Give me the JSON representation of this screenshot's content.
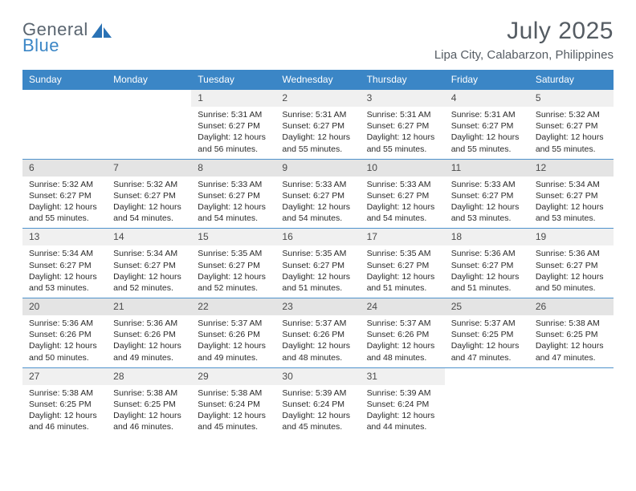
{
  "brand": {
    "line1": "General",
    "line2": "Blue",
    "icon_color": "#2a72b5"
  },
  "title": "July 2025",
  "location": "Lipa City, Calabarzon, Philippines",
  "colors": {
    "header_bg": "#3b86c6",
    "header_text": "#ffffff",
    "rule": "#3b86c6",
    "row_alt1": "#f0f0f0",
    "row_alt2": "#e4e4e4",
    "text": "#2a2a2a",
    "title_text": "#555c63"
  },
  "day_names": [
    "Sunday",
    "Monday",
    "Tuesday",
    "Wednesday",
    "Thursday",
    "Friday",
    "Saturday"
  ],
  "weeks": [
    {
      "shade": false,
      "days": [
        {
          "n": "",
          "body": ""
        },
        {
          "n": "",
          "body": ""
        },
        {
          "n": "1",
          "body": "Sunrise: 5:31 AM\nSunset: 6:27 PM\nDaylight: 12 hours and 56 minutes."
        },
        {
          "n": "2",
          "body": "Sunrise: 5:31 AM\nSunset: 6:27 PM\nDaylight: 12 hours and 55 minutes."
        },
        {
          "n": "3",
          "body": "Sunrise: 5:31 AM\nSunset: 6:27 PM\nDaylight: 12 hours and 55 minutes."
        },
        {
          "n": "4",
          "body": "Sunrise: 5:31 AM\nSunset: 6:27 PM\nDaylight: 12 hours and 55 minutes."
        },
        {
          "n": "5",
          "body": "Sunrise: 5:32 AM\nSunset: 6:27 PM\nDaylight: 12 hours and 55 minutes."
        }
      ]
    },
    {
      "shade": true,
      "days": [
        {
          "n": "6",
          "body": "Sunrise: 5:32 AM\nSunset: 6:27 PM\nDaylight: 12 hours and 55 minutes."
        },
        {
          "n": "7",
          "body": "Sunrise: 5:32 AM\nSunset: 6:27 PM\nDaylight: 12 hours and 54 minutes."
        },
        {
          "n": "8",
          "body": "Sunrise: 5:33 AM\nSunset: 6:27 PM\nDaylight: 12 hours and 54 minutes."
        },
        {
          "n": "9",
          "body": "Sunrise: 5:33 AM\nSunset: 6:27 PM\nDaylight: 12 hours and 54 minutes."
        },
        {
          "n": "10",
          "body": "Sunrise: 5:33 AM\nSunset: 6:27 PM\nDaylight: 12 hours and 54 minutes."
        },
        {
          "n": "11",
          "body": "Sunrise: 5:33 AM\nSunset: 6:27 PM\nDaylight: 12 hours and 53 minutes."
        },
        {
          "n": "12",
          "body": "Sunrise: 5:34 AM\nSunset: 6:27 PM\nDaylight: 12 hours and 53 minutes."
        }
      ]
    },
    {
      "shade": false,
      "days": [
        {
          "n": "13",
          "body": "Sunrise: 5:34 AM\nSunset: 6:27 PM\nDaylight: 12 hours and 53 minutes."
        },
        {
          "n": "14",
          "body": "Sunrise: 5:34 AM\nSunset: 6:27 PM\nDaylight: 12 hours and 52 minutes."
        },
        {
          "n": "15",
          "body": "Sunrise: 5:35 AM\nSunset: 6:27 PM\nDaylight: 12 hours and 52 minutes."
        },
        {
          "n": "16",
          "body": "Sunrise: 5:35 AM\nSunset: 6:27 PM\nDaylight: 12 hours and 51 minutes."
        },
        {
          "n": "17",
          "body": "Sunrise: 5:35 AM\nSunset: 6:27 PM\nDaylight: 12 hours and 51 minutes."
        },
        {
          "n": "18",
          "body": "Sunrise: 5:36 AM\nSunset: 6:27 PM\nDaylight: 12 hours and 51 minutes."
        },
        {
          "n": "19",
          "body": "Sunrise: 5:36 AM\nSunset: 6:27 PM\nDaylight: 12 hours and 50 minutes."
        }
      ]
    },
    {
      "shade": true,
      "days": [
        {
          "n": "20",
          "body": "Sunrise: 5:36 AM\nSunset: 6:26 PM\nDaylight: 12 hours and 50 minutes."
        },
        {
          "n": "21",
          "body": "Sunrise: 5:36 AM\nSunset: 6:26 PM\nDaylight: 12 hours and 49 minutes."
        },
        {
          "n": "22",
          "body": "Sunrise: 5:37 AM\nSunset: 6:26 PM\nDaylight: 12 hours and 49 minutes."
        },
        {
          "n": "23",
          "body": "Sunrise: 5:37 AM\nSunset: 6:26 PM\nDaylight: 12 hours and 48 minutes."
        },
        {
          "n": "24",
          "body": "Sunrise: 5:37 AM\nSunset: 6:26 PM\nDaylight: 12 hours and 48 minutes."
        },
        {
          "n": "25",
          "body": "Sunrise: 5:37 AM\nSunset: 6:25 PM\nDaylight: 12 hours and 47 minutes."
        },
        {
          "n": "26",
          "body": "Sunrise: 5:38 AM\nSunset: 6:25 PM\nDaylight: 12 hours and 47 minutes."
        }
      ]
    },
    {
      "shade": false,
      "days": [
        {
          "n": "27",
          "body": "Sunrise: 5:38 AM\nSunset: 6:25 PM\nDaylight: 12 hours and 46 minutes."
        },
        {
          "n": "28",
          "body": "Sunrise: 5:38 AM\nSunset: 6:25 PM\nDaylight: 12 hours and 46 minutes."
        },
        {
          "n": "29",
          "body": "Sunrise: 5:38 AM\nSunset: 6:24 PM\nDaylight: 12 hours and 45 minutes."
        },
        {
          "n": "30",
          "body": "Sunrise: 5:39 AM\nSunset: 6:24 PM\nDaylight: 12 hours and 45 minutes."
        },
        {
          "n": "31",
          "body": "Sunrise: 5:39 AM\nSunset: 6:24 PM\nDaylight: 12 hours and 44 minutes."
        },
        {
          "n": "",
          "body": ""
        },
        {
          "n": "",
          "body": ""
        }
      ]
    }
  ]
}
